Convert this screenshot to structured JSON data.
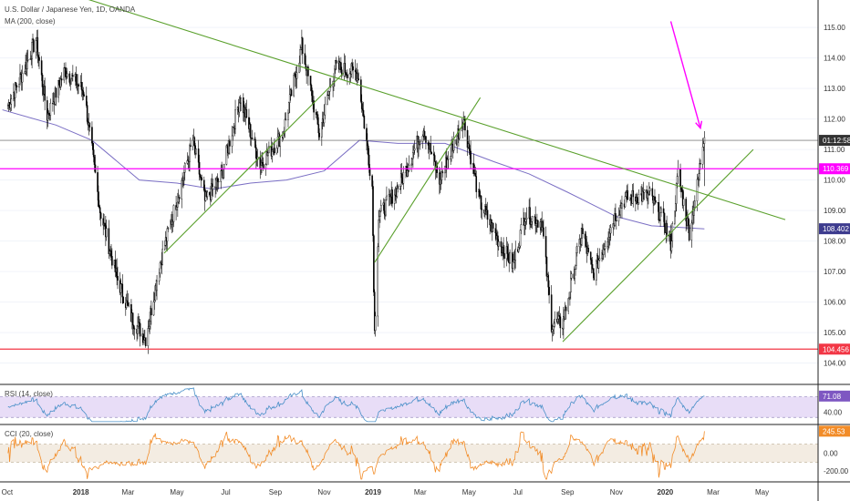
{
  "main": {
    "title": "U.S. Dollar / Japanese Yen, 1D, OANDA",
    "ma_legend": "MA (200, close)"
  },
  "rsi": {
    "legend": "RSI (14, close)",
    "value_label": "71.08",
    "ticks": [
      "40.00"
    ]
  },
  "cci": {
    "legend": "CCI (20, close)",
    "value_label": "245.53",
    "ticks": [
      "0.00",
      "-200.00"
    ]
  },
  "price_labels": {
    "countdown": "01:12:58",
    "resistance": "110.369",
    "ma": "108.402",
    "support": "104.456"
  },
  "colors": {
    "candle": "#000000",
    "ma": "#7b6fc4",
    "trend": "#5aa02c",
    "magenta": "#ff00ff",
    "support": "#f23645",
    "rsi": "#4a90c8",
    "rsi_band": "#e8ddf7",
    "cci": "#f28c28",
    "cci_band": "#f3ece2"
  },
  "chart_data": {
    "type": "candlestick",
    "title": "U.S. Dollar / Japanese Yen, 1D, OANDA",
    "price_range": [
      103.3,
      115.9
    ],
    "price_ticks": [
      "115.00",
      "114.00",
      "113.00",
      "112.00",
      "111.00",
      "110.00",
      "109.00",
      "108.00",
      "107.00",
      "106.00",
      "105.00",
      "104.00"
    ],
    "time_labels": [
      "Oct",
      "2018",
      "Mar",
      "May",
      "Jul",
      "Sep",
      "Nov",
      "2019",
      "Mar",
      "May",
      "Jul",
      "Sep",
      "Nov",
      "2020",
      "Mar",
      "May"
    ],
    "price_path": [
      [
        "2017-10-01",
        112.4
      ],
      [
        "2017-10-20",
        113.5
      ],
      [
        "2017-11-06",
        114.6
      ],
      [
        "2017-11-20",
        112.1
      ],
      [
        "2017-12-12",
        113.6
      ],
      [
        "2018-01-05",
        112.9
      ],
      [
        "2018-01-25",
        109.0
      ],
      [
        "2018-02-15",
        106.8
      ],
      [
        "2018-03-05",
        105.5
      ],
      [
        "2018-03-23",
        104.8
      ],
      [
        "2018-04-10",
        107.3
      ],
      [
        "2018-05-21",
        111.3
      ],
      [
        "2018-06-05",
        109.3
      ],
      [
        "2018-06-25",
        110.1
      ],
      [
        "2018-07-19",
        112.7
      ],
      [
        "2018-08-13",
        110.5
      ],
      [
        "2018-09-10",
        111.5
      ],
      [
        "2018-10-04",
        114.4
      ],
      [
        "2018-10-26",
        111.5
      ],
      [
        "2018-11-14",
        113.7
      ],
      [
        "2018-12-13",
        113.5
      ],
      [
        "2018-12-31",
        109.8
      ],
      [
        "2019-01-03",
        105.0
      ],
      [
        "2019-01-08",
        108.8
      ],
      [
        "2019-02-04",
        109.9
      ],
      [
        "2019-03-05",
        111.7
      ],
      [
        "2019-03-25",
        110.0
      ],
      [
        "2019-04-24",
        112.0
      ],
      [
        "2019-05-14",
        109.3
      ],
      [
        "2019-06-05",
        108.1
      ],
      [
        "2019-06-25",
        107.2
      ],
      [
        "2019-07-10",
        108.9
      ],
      [
        "2019-07-31",
        108.6
      ],
      [
        "2019-08-12",
        105.3
      ],
      [
        "2019-08-26",
        105.3
      ],
      [
        "2019-09-19",
        108.3
      ],
      [
        "2019-10-03",
        106.9
      ],
      [
        "2019-10-30",
        108.8
      ],
      [
        "2019-11-12",
        109.4
      ],
      [
        "2019-12-13",
        109.5
      ],
      [
        "2019-12-31",
        108.6
      ],
      [
        "2020-01-08",
        107.9
      ],
      [
        "2020-01-17",
        110.2
      ],
      [
        "2020-01-31",
        108.3
      ],
      [
        "2020-02-10",
        109.8
      ],
      [
        "2020-02-19",
        111.6
      ]
    ],
    "ma200_path": [
      [
        "2017-09-25",
        112.3
      ],
      [
        "2017-12-01",
        111.8
      ],
      [
        "2018-01-15",
        111.3
      ],
      [
        "2018-03-15",
        110.0
      ],
      [
        "2018-05-01",
        109.9
      ],
      [
        "2018-06-15",
        109.7
      ],
      [
        "2018-08-01",
        109.9
      ],
      [
        "2018-09-15",
        110.0
      ],
      [
        "2018-11-01",
        110.3
      ],
      [
        "2018-12-15",
        111.3
      ],
      [
        "2019-02-01",
        111.2
      ],
      [
        "2019-04-01",
        111.2
      ],
      [
        "2019-06-01",
        110.6
      ],
      [
        "2019-07-15",
        110.2
      ],
      [
        "2019-09-01",
        109.6
      ],
      [
        "2019-11-01",
        108.8
      ],
      [
        "2019-12-15",
        108.5
      ],
      [
        "2020-02-19",
        108.4
      ]
    ],
    "trendlines": [
      {
        "name": "descending-resistance",
        "from": [
          "2017-11-01",
          116.5
        ],
        "to": [
          "2020-05-30",
          108.7
        ]
      },
      {
        "name": "channel-2018",
        "from": [
          "2018-04-15",
          107.6
        ],
        "to": [
          "2018-11-25",
          113.5
        ]
      },
      {
        "name": "channel-2019",
        "from": [
          "2019-01-03",
          107.3
        ],
        "to": [
          "2019-05-15",
          112.7
        ]
      },
      {
        "name": "rising-support-2019",
        "from": [
          "2019-08-26",
          104.7
        ],
        "to": [
          "2020-04-20",
          111.0
        ]
      }
    ],
    "horizontal_lines": [
      {
        "name": "resistance",
        "price": 110.369
      },
      {
        "name": "support",
        "price": 104.456
      },
      {
        "name": "current-price",
        "price": 111.3
      }
    ],
    "arrow": {
      "from": [
        "2020-01-08",
        115.2
      ],
      "to": [
        "2020-02-14",
        111.7
      ]
    },
    "rsi_range": [
      20,
      90
    ],
    "rsi_band": [
      30,
      70
    ],
    "rsi_current": 71.08,
    "cci_range": [
      -300,
      300
    ],
    "cci_band": [
      -100,
      100
    ],
    "cci_current": 245.53
  }
}
